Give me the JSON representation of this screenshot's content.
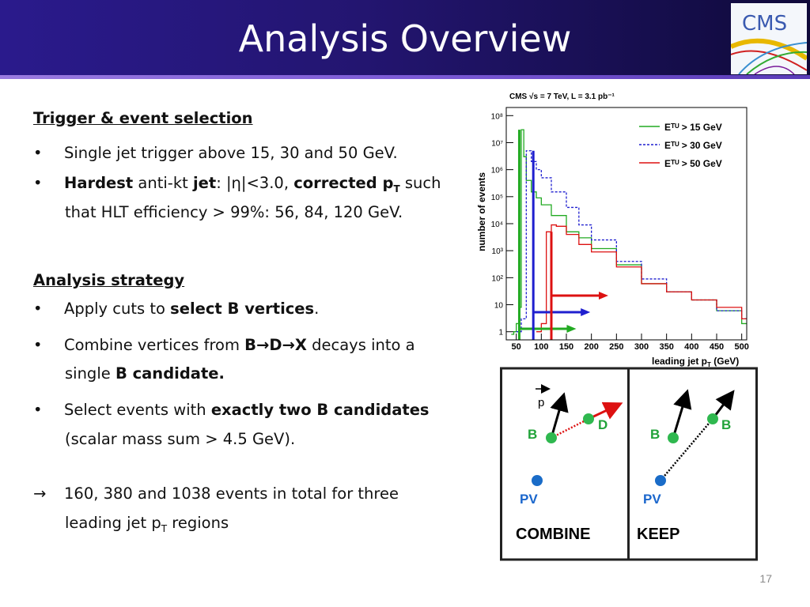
{
  "title": "Analysis Overview",
  "logo_text": "CMS",
  "page_number": "17",
  "section1": {
    "heading": "Trigger & event selection",
    "bullet1": "Single jet trigger above 15, 30 and 50 GeV.",
    "bullet2": {
      "bold1": "Hardest",
      "text1": " anti-kt ",
      "bold2": "jet",
      "text2": ": |η|<3.0, ",
      "bold3": "corrected p",
      "sub": "T",
      "text3": " such",
      "line2": "that HLT efficiency > 99%: 56, 84, 120 GeV."
    }
  },
  "section2": {
    "heading": "Analysis strategy",
    "bullet1": {
      "text": "Apply cuts to ",
      "bold": "select B vertices",
      "end": "."
    },
    "bullet2": {
      "text": "Combine vertices from ",
      "bold": "B→D→X",
      "end": " decays into a",
      "line2_text": "single ",
      "line2_bold": "B candidate."
    },
    "bullet3": {
      "text": "Select events with ",
      "bold": "exactly two B candidates",
      "line2": "(scalar mass sum > 4.5 GeV)."
    },
    "result": {
      "arrow": "→",
      "text": "160, 380 and 1038 events in total for three",
      "line2_text": "leading jet p",
      "line2_sub": "T",
      "line2_end": " regions"
    }
  },
  "plot": {
    "header": "CMS   √s = 7 TeV, L = 3.1 pb⁻¹",
    "ylabel": "number of events",
    "xlabel": "leading jet p",
    "xlabel_sub": "T",
    "xlabel_unit": " (GeV)"
  },
  "chart_data": {
    "type": "line",
    "title": "CMS √s = 7 TeV, L = 3.1 pb⁻¹",
    "xlabel": "leading jet pT (GeV)",
    "ylabel": "number of events",
    "yscale": "log",
    "xlim": [
      30,
      510
    ],
    "ylim": [
      0.5,
      200000000
    ],
    "x_ticks": [
      "50",
      "100",
      "150",
      "200",
      "250",
      "300",
      "350",
      "400",
      "450",
      "500"
    ],
    "y_ticks": [
      "1",
      "10",
      "10²",
      "10³",
      "10⁴",
      "10⁵",
      "10⁶",
      "10⁷",
      "10⁸"
    ],
    "series": [
      {
        "name": "Eᵀᵁ > 15 GeV",
        "color": "#22aa22",
        "style": "solid",
        "x": [
          40,
          45,
          50,
          55,
          60,
          65,
          70,
          80,
          90,
          100,
          120,
          150,
          175,
          200,
          250,
          300,
          350,
          400,
          450,
          500
        ],
        "y": [
          0.8,
          1,
          2,
          8,
          30000000,
          3000000,
          400000,
          150000,
          90000,
          50000,
          20000,
          5000,
          3000,
          1200,
          300,
          60,
          30,
          15,
          6,
          2
        ]
      },
      {
        "name": "Eᵀᵁ > 30 GeV",
        "color": "#1f1fcf",
        "style": "dashed",
        "x": [
          50,
          60,
          70,
          80,
          90,
          100,
          120,
          150,
          175,
          200,
          250,
          300,
          350,
          400,
          450,
          500
        ],
        "y": [
          1,
          3,
          5000000,
          2000000,
          1000000,
          500000,
          150000,
          40000,
          9000,
          2500,
          400,
          90,
          30,
          15,
          6,
          3
        ]
      },
      {
        "name": "Eᵀᵁ > 50 GeV",
        "color": "#dd1111",
        "style": "solid",
        "x": [
          90,
          100,
          110,
          120,
          130,
          150,
          175,
          200,
          250,
          300,
          350,
          400,
          450,
          500
        ],
        "y": [
          1,
          2,
          5000,
          9000,
          8000,
          4000,
          1700,
          900,
          250,
          60,
          30,
          15,
          8,
          3
        ]
      }
    ],
    "vlines": [
      {
        "x": 56,
        "color": "#22aa22"
      },
      {
        "x": 84,
        "color": "#1f1fcf"
      },
      {
        "x": 120,
        "color": "#dd1111"
      }
    ],
    "legend": "top-right"
  },
  "schematic": {
    "combine": {
      "label": "COMBINE",
      "p": "p",
      "b": "B",
      "d": "D",
      "pv": "PV"
    },
    "keep": {
      "label": "KEEP",
      "b1": "B",
      "b2": "B",
      "pv": "PV"
    }
  },
  "colors": {
    "title_bar": "#231570",
    "green": "#22aa22",
    "blue": "#1f1fcf",
    "red": "#dd1111",
    "vertex_green": "#2fb84f",
    "pv_blue": "#1a6cc8",
    "label_blue": "#1a66cc",
    "label_green": "#22a33a"
  }
}
